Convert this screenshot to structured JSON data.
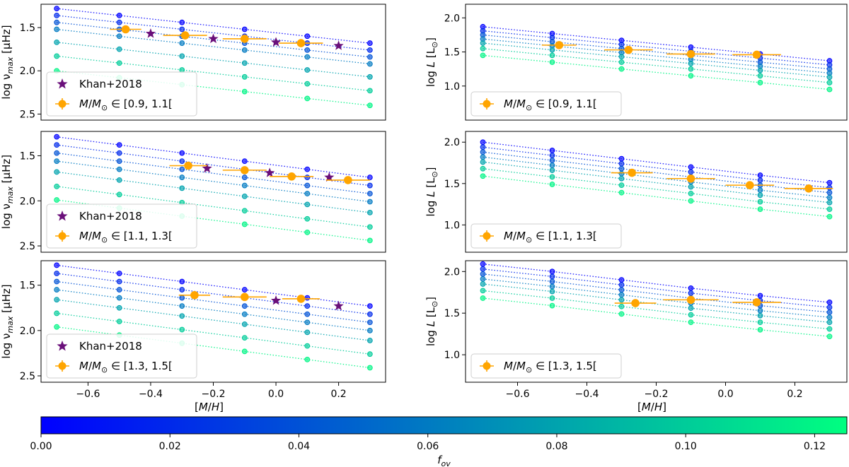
{
  "chart_data": [
    {
      "type": "scatter",
      "panel": "top-left",
      "ylabel": "log ν_max [μHz]",
      "xlabel": "",
      "xlim": [
        -0.75,
        0.35
      ],
      "ylim": [
        2.57,
        1.23
      ],
      "y_inverted": true,
      "xticks": [],
      "yticks": [
        1.5,
        2.0,
        2.5
      ],
      "ytick_labels": [
        "1.5",
        "2.0",
        "2.5"
      ],
      "tracks": [
        {
          "fov": 0.0,
          "x": [
            -0.7,
            -0.5,
            -0.3,
            -0.1,
            0.1,
            0.3
          ],
          "y": [
            1.28,
            1.36,
            1.44,
            1.52,
            1.6,
            1.68
          ]
        },
        {
          "fov": 0.02,
          "x": [
            -0.7,
            -0.5,
            -0.3,
            -0.1,
            0.1,
            0.3
          ],
          "y": [
            1.36,
            1.44,
            1.52,
            1.6,
            1.68,
            1.76
          ]
        },
        {
          "fov": 0.04,
          "x": [
            -0.7,
            -0.5,
            -0.3,
            -0.1,
            0.1,
            0.3
          ],
          "y": [
            1.44,
            1.52,
            1.6,
            1.68,
            1.76,
            1.84
          ]
        },
        {
          "fov": 0.06,
          "x": [
            -0.7,
            -0.5,
            -0.3,
            -0.1,
            0.1,
            0.3
          ],
          "y": [
            1.52,
            1.6,
            1.68,
            1.76,
            1.84,
            1.92
          ]
        },
        {
          "fov": 0.08,
          "x": [
            -0.7,
            -0.5,
            -0.3,
            -0.1,
            0.1,
            0.3
          ],
          "y": [
            1.67,
            1.75,
            1.83,
            1.91,
            1.99,
            2.07
          ]
        },
        {
          "fov": 0.1,
          "x": [
            -0.7,
            -0.5,
            -0.3,
            -0.1,
            0.1,
            0.3
          ],
          "y": [
            1.83,
            1.91,
            1.99,
            2.07,
            2.15,
            2.23
          ]
        },
        {
          "fov": 0.12,
          "x": [
            -0.7,
            -0.5,
            -0.3,
            -0.1,
            0.1,
            0.3
          ],
          "y": [
            2.0,
            2.08,
            2.16,
            2.24,
            2.32,
            2.4
          ]
        }
      ],
      "khan": {
        "x": [
          -0.4,
          -0.2,
          0.0,
          0.2
        ],
        "y": [
          1.57,
          1.63,
          1.67,
          1.71
        ]
      },
      "obs": {
        "x": [
          -0.48,
          -0.29,
          -0.1,
          0.08
        ],
        "y": [
          1.52,
          1.59,
          1.63,
          1.68
        ],
        "xerr": [
          0.05,
          0.07,
          0.07,
          0.07
        ]
      },
      "legend": [
        "Khan+2018",
        "M/M⊙ ∈ [0.9, 1.1["
      ]
    },
    {
      "type": "scatter",
      "panel": "top-right",
      "ylabel": "log L [L⊙]",
      "xlabel": "",
      "xlim": [
        -0.75,
        0.35
      ],
      "ylim": [
        0.5,
        2.2
      ],
      "xticks": [],
      "yticks": [
        1.0,
        1.5,
        2.0
      ],
      "ytick_labels": [
        "1.0",
        "1.5",
        "2.0"
      ],
      "tracks": [
        {
          "fov": 0.0,
          "x": [
            -0.7,
            -0.5,
            -0.3,
            -0.1,
            0.1,
            0.3
          ],
          "y": [
            1.87,
            1.77,
            1.67,
            1.57,
            1.47,
            1.37
          ]
        },
        {
          "fov": 0.02,
          "x": [
            -0.7,
            -0.5,
            -0.3,
            -0.1,
            0.1,
            0.3
          ],
          "y": [
            1.81,
            1.71,
            1.61,
            1.51,
            1.41,
            1.31
          ]
        },
        {
          "fov": 0.04,
          "x": [
            -0.7,
            -0.5,
            -0.3,
            -0.1,
            0.1,
            0.3
          ],
          "y": [
            1.75,
            1.65,
            1.55,
            1.45,
            1.35,
            1.25
          ]
        },
        {
          "fov": 0.06,
          "x": [
            -0.7,
            -0.5,
            -0.3,
            -0.1,
            0.1,
            0.3
          ],
          "y": [
            1.69,
            1.59,
            1.49,
            1.39,
            1.29,
            1.19
          ]
        },
        {
          "fov": 0.08,
          "x": [
            -0.7,
            -0.5,
            -0.3,
            -0.1,
            0.1,
            0.3
          ],
          "y": [
            1.63,
            1.53,
            1.43,
            1.33,
            1.23,
            1.13
          ]
        },
        {
          "fov": 0.1,
          "x": [
            -0.7,
            -0.5,
            -0.3,
            -0.1,
            0.1,
            0.3
          ],
          "y": [
            1.55,
            1.45,
            1.35,
            1.25,
            1.15,
            1.05
          ]
        },
        {
          "fov": 0.12,
          "x": [
            -0.7,
            -0.5,
            -0.3,
            -0.1,
            0.1,
            0.3
          ],
          "y": [
            1.45,
            1.35,
            1.25,
            1.15,
            1.05,
            0.95
          ]
        }
      ],
      "obs": {
        "x": [
          -0.48,
          -0.28,
          -0.1,
          0.09
        ],
        "y": [
          1.6,
          1.53,
          1.47,
          1.46
        ],
        "xerr": [
          0.05,
          0.07,
          0.07,
          0.07
        ]
      },
      "legend": [
        "M/M⊙ ∈ [0.9, 1.1["
      ]
    },
    {
      "type": "scatter",
      "panel": "middle-left",
      "ylabel": "log ν_max [μHz]",
      "xlabel": "",
      "xlim": [
        -0.75,
        0.35
      ],
      "ylim": [
        2.57,
        1.23
      ],
      "y_inverted": true,
      "xticks": [],
      "yticks": [
        1.5,
        2.0,
        2.5
      ],
      "ytick_labels": [
        "1.5",
        "2.0",
        "2.5"
      ],
      "tracks": [
        {
          "fov": 0.0,
          "x": [
            -0.7,
            -0.5,
            -0.3,
            -0.1,
            0.1,
            0.3
          ],
          "y": [
            1.29,
            1.38,
            1.47,
            1.56,
            1.65,
            1.74
          ]
        },
        {
          "fov": 0.02,
          "x": [
            -0.7,
            -0.5,
            -0.3,
            -0.1,
            0.1,
            0.3
          ],
          "y": [
            1.38,
            1.47,
            1.56,
            1.65,
            1.74,
            1.83
          ]
        },
        {
          "fov": 0.04,
          "x": [
            -0.7,
            -0.5,
            -0.3,
            -0.1,
            0.1,
            0.3
          ],
          "y": [
            1.47,
            1.56,
            1.65,
            1.74,
            1.83,
            1.92
          ]
        },
        {
          "fov": 0.06,
          "x": [
            -0.7,
            -0.5,
            -0.3,
            -0.1,
            0.1,
            0.3
          ],
          "y": [
            1.56,
            1.65,
            1.74,
            1.83,
            1.92,
            2.01
          ]
        },
        {
          "fov": 0.08,
          "x": [
            -0.7,
            -0.5,
            -0.3,
            -0.1,
            0.1,
            0.3
          ],
          "y": [
            1.68,
            1.77,
            1.86,
            1.95,
            2.04,
            2.13
          ]
        },
        {
          "fov": 0.1,
          "x": [
            -0.7,
            -0.5,
            -0.3,
            -0.1,
            0.1,
            0.3
          ],
          "y": [
            1.84,
            1.93,
            2.02,
            2.11,
            2.2,
            2.29
          ]
        },
        {
          "fov": 0.12,
          "x": [
            -0.7,
            -0.5,
            -0.3,
            -0.1,
            0.1,
            0.3
          ],
          "y": [
            1.99,
            2.08,
            2.17,
            2.26,
            2.35,
            2.44
          ]
        }
      ],
      "khan": {
        "x": [
          -0.22,
          -0.02,
          0.17
        ],
        "y": [
          1.64,
          1.69,
          1.74
        ]
      },
      "obs": {
        "x": [
          -0.28,
          -0.1,
          0.05,
          0.23
        ],
        "y": [
          1.61,
          1.66,
          1.73,
          1.77
        ],
        "xerr": [
          0.06,
          0.07,
          0.07,
          0.07
        ]
      },
      "legend": [
        "Khan+2018",
        "M/M⊙ ∈ [1.1, 1.3["
      ]
    },
    {
      "type": "scatter",
      "panel": "middle-right",
      "ylabel": "log L [L⊙]",
      "xlabel": "",
      "xlim": [
        -0.75,
        0.35
      ],
      "ylim": [
        0.67,
        2.13
      ],
      "xticks": [],
      "yticks": [
        1.0,
        1.5,
        2.0
      ],
      "ytick_labels": [
        "1.0",
        "1.5",
        "2.0"
      ],
      "tracks": [
        {
          "fov": 0.0,
          "x": [
            -0.7,
            -0.5,
            -0.3,
            -0.1,
            0.1,
            0.3
          ],
          "y": [
            2.0,
            1.9,
            1.8,
            1.7,
            1.6,
            1.51
          ]
        },
        {
          "fov": 0.02,
          "x": [
            -0.7,
            -0.5,
            -0.3,
            -0.1,
            0.1,
            0.3
          ],
          "y": [
            1.94,
            1.84,
            1.74,
            1.64,
            1.54,
            1.45
          ]
        },
        {
          "fov": 0.04,
          "x": [
            -0.7,
            -0.5,
            -0.3,
            -0.1,
            0.1,
            0.3
          ],
          "y": [
            1.88,
            1.78,
            1.68,
            1.58,
            1.48,
            1.39
          ]
        },
        {
          "fov": 0.06,
          "x": [
            -0.7,
            -0.5,
            -0.3,
            -0.1,
            0.1,
            0.3
          ],
          "y": [
            1.82,
            1.72,
            1.62,
            1.52,
            1.42,
            1.33
          ]
        },
        {
          "fov": 0.08,
          "x": [
            -0.7,
            -0.5,
            -0.3,
            -0.1,
            0.1,
            0.3
          ],
          "y": [
            1.76,
            1.66,
            1.56,
            1.46,
            1.36,
            1.27
          ]
        },
        {
          "fov": 0.1,
          "x": [
            -0.7,
            -0.5,
            -0.3,
            -0.1,
            0.1,
            0.3
          ],
          "y": [
            1.68,
            1.58,
            1.48,
            1.38,
            1.28,
            1.19
          ]
        },
        {
          "fov": 0.12,
          "x": [
            -0.7,
            -0.5,
            -0.3,
            -0.1,
            0.1,
            0.3
          ],
          "y": [
            1.59,
            1.49,
            1.39,
            1.29,
            1.19,
            1.1
          ]
        }
      ],
      "obs": {
        "x": [
          -0.27,
          -0.1,
          0.07,
          0.24
        ],
        "y": [
          1.63,
          1.56,
          1.48,
          1.44
        ],
        "xerr": [
          0.06,
          0.07,
          0.07,
          0.07
        ]
      },
      "legend": [
        "M/M⊙ ∈ [1.1, 1.3["
      ]
    },
    {
      "type": "scatter",
      "panel": "bottom-left",
      "ylabel": "log ν_max [μHz]",
      "xlabel": "[M/H]",
      "xlim": [
        -0.75,
        0.35
      ],
      "ylim": [
        2.57,
        1.23
      ],
      "y_inverted": true,
      "xticks": [
        -0.6,
        -0.4,
        -0.2,
        0.0,
        0.2
      ],
      "xtick_labels": [
        "−0.6",
        "−0.4",
        "−0.2",
        "0.0",
        "0.2"
      ],
      "yticks": [
        1.5,
        2.0,
        2.5
      ],
      "ytick_labels": [
        "1.5",
        "2.0",
        "2.5"
      ],
      "tracks": [
        {
          "fov": 0.0,
          "x": [
            -0.7,
            -0.5,
            -0.3,
            -0.1,
            0.1,
            0.3
          ],
          "y": [
            1.28,
            1.37,
            1.46,
            1.55,
            1.64,
            1.73
          ]
        },
        {
          "fov": 0.02,
          "x": [
            -0.7,
            -0.5,
            -0.3,
            -0.1,
            0.1,
            0.3
          ],
          "y": [
            1.37,
            1.46,
            1.55,
            1.64,
            1.73,
            1.82
          ]
        },
        {
          "fov": 0.04,
          "x": [
            -0.7,
            -0.5,
            -0.3,
            -0.1,
            0.1,
            0.3
          ],
          "y": [
            1.46,
            1.55,
            1.64,
            1.73,
            1.82,
            1.91
          ]
        },
        {
          "fov": 0.06,
          "x": [
            -0.7,
            -0.5,
            -0.3,
            -0.1,
            0.1,
            0.3
          ],
          "y": [
            1.55,
            1.64,
            1.73,
            1.82,
            1.91,
            2.0
          ]
        },
        {
          "fov": 0.08,
          "x": [
            -0.7,
            -0.5,
            -0.3,
            -0.1,
            0.1,
            0.3
          ],
          "y": [
            1.66,
            1.75,
            1.84,
            1.93,
            2.02,
            2.11
          ]
        },
        {
          "fov": 0.1,
          "x": [
            -0.7,
            -0.5,
            -0.3,
            -0.1,
            0.1,
            0.3
          ],
          "y": [
            1.81,
            1.9,
            1.99,
            2.08,
            2.17,
            2.26
          ]
        },
        {
          "fov": 0.12,
          "x": [
            -0.7,
            -0.5,
            -0.3,
            -0.1,
            0.1,
            0.3
          ],
          "y": [
            1.96,
            2.05,
            2.14,
            2.23,
            2.32,
            2.41
          ]
        }
      ],
      "khan": {
        "x": [
          0.0,
          0.2
        ],
        "y": [
          1.67,
          1.73
        ]
      },
      "obs": {
        "x": [
          -0.26,
          -0.1,
          0.08
        ],
        "y": [
          1.61,
          1.63,
          1.65
        ],
        "xerr": [
          0.05,
          0.07,
          0.06
        ]
      },
      "legend": [
        "Khan+2018",
        "M/M⊙ ∈ [1.3, 1.5["
      ]
    },
    {
      "type": "scatter",
      "panel": "bottom-right",
      "ylabel": "log L [L⊙]",
      "xlabel": "[M/H]",
      "xlim": [
        -0.75,
        0.35
      ],
      "ylim": [
        0.67,
        2.13
      ],
      "xticks": [
        -0.6,
        -0.4,
        -0.2,
        0.0,
        0.2
      ],
      "xtick_labels": [
        "−0.6",
        "−0.4",
        "−0.2",
        "0.0",
        "0.2"
      ],
      "yticks": [
        1.0,
        1.5,
        2.0
      ],
      "ytick_labels": [
        "1.0",
        "1.5",
        "2.0"
      ],
      "tracks": [
        {
          "fov": 0.0,
          "x": [
            -0.7,
            -0.5,
            -0.3,
            -0.1,
            0.1,
            0.3
          ],
          "y": [
            2.09,
            2.0,
            1.9,
            1.8,
            1.71,
            1.63
          ]
        },
        {
          "fov": 0.02,
          "x": [
            -0.7,
            -0.5,
            -0.3,
            -0.1,
            0.1,
            0.3
          ],
          "y": [
            2.03,
            1.94,
            1.84,
            1.74,
            1.65,
            1.57
          ]
        },
        {
          "fov": 0.04,
          "x": [
            -0.7,
            -0.5,
            -0.3,
            -0.1,
            0.1,
            0.3
          ],
          "y": [
            1.97,
            1.88,
            1.78,
            1.68,
            1.59,
            1.51
          ]
        },
        {
          "fov": 0.06,
          "x": [
            -0.7,
            -0.5,
            -0.3,
            -0.1,
            0.1,
            0.3
          ],
          "y": [
            1.91,
            1.82,
            1.72,
            1.62,
            1.53,
            1.45
          ]
        },
        {
          "fov": 0.08,
          "x": [
            -0.7,
            -0.5,
            -0.3,
            -0.1,
            0.1,
            0.3
          ],
          "y": [
            1.85,
            1.76,
            1.66,
            1.56,
            1.47,
            1.39
          ]
        },
        {
          "fov": 0.1,
          "x": [
            -0.7,
            -0.5,
            -0.3,
            -0.1,
            0.1,
            0.3
          ],
          "y": [
            1.77,
            1.68,
            1.58,
            1.48,
            1.39,
            1.31
          ]
        },
        {
          "fov": 0.12,
          "x": [
            -0.7,
            -0.5,
            -0.3,
            -0.1,
            0.1,
            0.3
          ],
          "y": [
            1.68,
            1.59,
            1.49,
            1.39,
            1.3,
            1.22
          ]
        }
      ],
      "obs": {
        "x": [
          -0.26,
          -0.1,
          0.09
        ],
        "y": [
          1.62,
          1.66,
          1.63
        ],
        "xerr": [
          0.06,
          0.08,
          0.07
        ]
      },
      "legend": [
        "M/M⊙ ∈ [1.3, 1.5["
      ]
    },
    {
      "type": "colorbar",
      "label": "f_ov",
      "range": [
        0.0,
        0.125
      ],
      "ticks": [
        0.0,
        0.02,
        0.04,
        0.06,
        0.08,
        0.1,
        0.12
      ],
      "tick_labels": [
        "0.00",
        "0.02",
        "0.04",
        "0.06",
        "0.08",
        "0.10",
        "0.12"
      ],
      "cmap": [
        "#0000ff",
        "#00ff80"
      ]
    }
  ],
  "colors": {
    "khan": "#6a0f7a",
    "obs": "#ffa500",
    "track_start": "#0000ff",
    "track_end": "#00ff80"
  }
}
